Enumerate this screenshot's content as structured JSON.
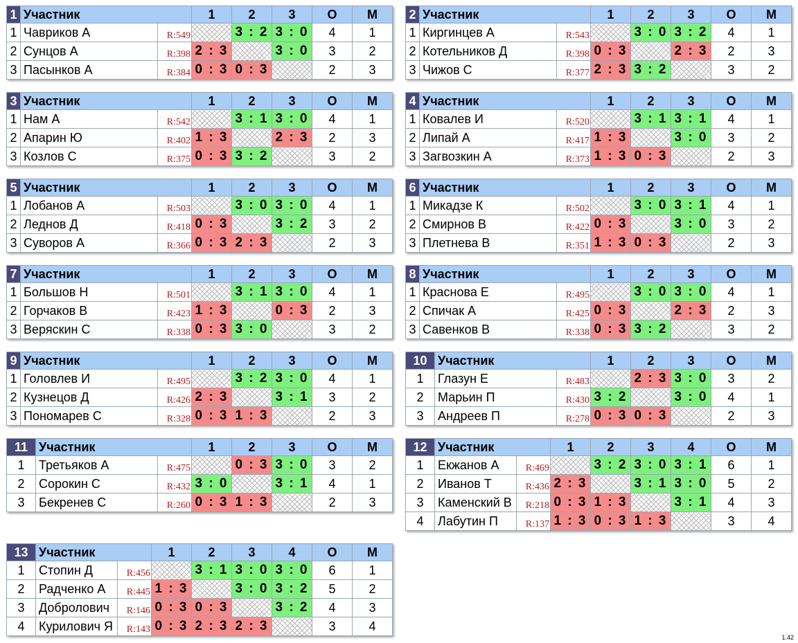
{
  "headers": {
    "title": "Участник",
    "points": "О",
    "place": "М"
  },
  "version": "1.42",
  "groups": [
    {
      "num": "1",
      "cols": [
        "1",
        "2",
        "3"
      ],
      "rows": [
        {
          "i": "1",
          "name": "Чавриков А",
          "rating": "R:549",
          "scores": [
            "",
            "3 : 2",
            "3 : 0"
          ],
          "pts": "4",
          "place": "1"
        },
        {
          "i": "2",
          "name": "Сунцов А",
          "rating": "R:398",
          "scores": [
            "2 : 3",
            "",
            "3 : 0"
          ],
          "pts": "3",
          "place": "2"
        },
        {
          "i": "3",
          "name": "Пасынков А",
          "rating": "R:384",
          "scores": [
            "0 : 3",
            "0 : 3",
            ""
          ],
          "pts": "2",
          "place": "3"
        }
      ]
    },
    {
      "num": "2",
      "cols": [
        "1",
        "2",
        "3"
      ],
      "rows": [
        {
          "i": "1",
          "name": "Киргинцев А",
          "rating": "R:543",
          "scores": [
            "",
            "3 : 0",
            "3 : 2"
          ],
          "pts": "4",
          "place": "1"
        },
        {
          "i": "2",
          "name": "Котельников Д",
          "rating": "R:398",
          "scores": [
            "0 : 3",
            "",
            "2 : 3"
          ],
          "pts": "2",
          "place": "3"
        },
        {
          "i": "3",
          "name": "Чижов С",
          "rating": "R:377",
          "scores": [
            "2 : 3",
            "3 : 2",
            ""
          ],
          "pts": "3",
          "place": "2"
        }
      ]
    },
    {
      "num": "3",
      "cols": [
        "1",
        "2",
        "3"
      ],
      "rows": [
        {
          "i": "1",
          "name": "Нам А",
          "rating": "R:542",
          "scores": [
            "",
            "3 : 1",
            "3 : 0"
          ],
          "pts": "4",
          "place": "1"
        },
        {
          "i": "2",
          "name": "Апарин Ю",
          "rating": "R:402",
          "scores": [
            "1 : 3",
            "",
            "2 : 3"
          ],
          "pts": "2",
          "place": "3"
        },
        {
          "i": "3",
          "name": "Козлов С",
          "rating": "R:375",
          "scores": [
            "0 : 3",
            "3 : 2",
            ""
          ],
          "pts": "3",
          "place": "2"
        }
      ]
    },
    {
      "num": "4",
      "cols": [
        "1",
        "2",
        "3"
      ],
      "rows": [
        {
          "i": "1",
          "name": "Ковалев И",
          "rating": "R:520",
          "scores": [
            "",
            "3 : 1",
            "3 : 1"
          ],
          "pts": "4",
          "place": "1"
        },
        {
          "i": "2",
          "name": "Липай А",
          "rating": "R:417",
          "scores": [
            "1 : 3",
            "",
            "3 : 0"
          ],
          "pts": "3",
          "place": "2"
        },
        {
          "i": "3",
          "name": "Загвозкин А",
          "rating": "R:373",
          "scores": [
            "1 : 3",
            "0 : 3",
            ""
          ],
          "pts": "2",
          "place": "3"
        }
      ]
    },
    {
      "num": "5",
      "cols": [
        "1",
        "2",
        "3"
      ],
      "rows": [
        {
          "i": "1",
          "name": "Лобанов А",
          "rating": "R:503",
          "scores": [
            "",
            "3 : 0",
            "3 : 0"
          ],
          "pts": "4",
          "place": "1"
        },
        {
          "i": "2",
          "name": "Леднов Д",
          "rating": "R:418",
          "scores": [
            "0 : 3",
            "",
            "3 : 2"
          ],
          "pts": "3",
          "place": "2"
        },
        {
          "i": "3",
          "name": "Суворов А",
          "rating": "R:366",
          "scores": [
            "0 : 3",
            "2 : 3",
            ""
          ],
          "pts": "2",
          "place": "3"
        }
      ]
    },
    {
      "num": "6",
      "cols": [
        "1",
        "2",
        "3"
      ],
      "rows": [
        {
          "i": "1",
          "name": "Микадзе К",
          "rating": "R:502",
          "scores": [
            "",
            "3 : 0",
            "3 : 1"
          ],
          "pts": "4",
          "place": "1"
        },
        {
          "i": "2",
          "name": "Смирнов В",
          "rating": "R:422",
          "scores": [
            "0 : 3",
            "",
            "3 : 0"
          ],
          "pts": "3",
          "place": "2"
        },
        {
          "i": "3",
          "name": "Плетнева В",
          "rating": "R:351",
          "scores": [
            "1 : 3",
            "0 : 3",
            ""
          ],
          "pts": "2",
          "place": "3"
        }
      ]
    },
    {
      "num": "7",
      "cols": [
        "1",
        "2",
        "3"
      ],
      "rows": [
        {
          "i": "1",
          "name": "Большов Н",
          "rating": "R:501",
          "scores": [
            "",
            "3 : 1",
            "3 : 0"
          ],
          "pts": "4",
          "place": "1"
        },
        {
          "i": "2",
          "name": "Горчаков В",
          "rating": "R:423",
          "scores": [
            "1 : 3",
            "",
            "0 : 3"
          ],
          "pts": "2",
          "place": "3"
        },
        {
          "i": "3",
          "name": "Веряскин С",
          "rating": "R:338",
          "scores": [
            "0 : 3",
            "3 : 0",
            ""
          ],
          "pts": "3",
          "place": "2"
        }
      ]
    },
    {
      "num": "8",
      "cols": [
        "1",
        "2",
        "3"
      ],
      "rows": [
        {
          "i": "1",
          "name": "Краснова Е",
          "rating": "R:495",
          "scores": [
            "",
            "3 : 0",
            "3 : 0"
          ],
          "pts": "4",
          "place": "1"
        },
        {
          "i": "2",
          "name": "Спичак А",
          "rating": "R:425",
          "scores": [
            "0 : 3",
            "",
            "2 : 3"
          ],
          "pts": "2",
          "place": "3"
        },
        {
          "i": "3",
          "name": "Савенков В",
          "rating": "R:338",
          "scores": [
            "0 : 3",
            "3 : 2",
            ""
          ],
          "pts": "3",
          "place": "2"
        }
      ]
    },
    {
      "num": "9",
      "cols": [
        "1",
        "2",
        "3"
      ],
      "rows": [
        {
          "i": "1",
          "name": "Головлев И",
          "rating": "R:495",
          "scores": [
            "",
            "3 : 2",
            "3 : 0"
          ],
          "pts": "4",
          "place": "1"
        },
        {
          "i": "2",
          "name": "Кузнецов Д",
          "rating": "R:426",
          "scores": [
            "2 : 3",
            "",
            "3 : 1"
          ],
          "pts": "3",
          "place": "2"
        },
        {
          "i": "3",
          "name": "Пономарев С",
          "rating": "R:328",
          "scores": [
            "0 : 3",
            "1 : 3",
            ""
          ],
          "pts": "2",
          "place": "3"
        }
      ]
    },
    {
      "num": "10",
      "cols": [
        "1",
        "2",
        "3"
      ],
      "rows": [
        {
          "i": "1",
          "name": "Глазун Е",
          "rating": "R:483",
          "scores": [
            "",
            "2 : 3",
            "3 : 0"
          ],
          "pts": "3",
          "place": "2"
        },
        {
          "i": "2",
          "name": "Марьин П",
          "rating": "R:430",
          "scores": [
            "3 : 2",
            "",
            "3 : 0"
          ],
          "pts": "4",
          "place": "1"
        },
        {
          "i": "3",
          "name": "Андреев П",
          "rating": "R:278",
          "scores": [
            "0 : 3",
            "0 : 3",
            ""
          ],
          "pts": "2",
          "place": "3"
        }
      ]
    },
    {
      "num": "11",
      "cols": [
        "1",
        "2",
        "3"
      ],
      "rows": [
        {
          "i": "1",
          "name": "Третьяков А",
          "rating": "R:475",
          "scores": [
            "",
            "0 : 3",
            "3 : 0"
          ],
          "pts": "3",
          "place": "2"
        },
        {
          "i": "2",
          "name": "Сорокин С",
          "rating": "R:432",
          "scores": [
            "3 : 0",
            "",
            "3 : 1"
          ],
          "pts": "4",
          "place": "1"
        },
        {
          "i": "3",
          "name": "Бекренев С",
          "rating": "R:260",
          "scores": [
            "0 : 3",
            "1 : 3",
            ""
          ],
          "pts": "2",
          "place": "3"
        }
      ]
    },
    {
      "num": "12",
      "cols": [
        "1",
        "2",
        "3",
        "4"
      ],
      "rows": [
        {
          "i": "1",
          "name": "Екжанов А",
          "rating": "R:469",
          "scores": [
            "",
            "3 : 2",
            "3 : 0",
            "3 : 1"
          ],
          "pts": "6",
          "place": "1"
        },
        {
          "i": "2",
          "name": "Иванов Т",
          "rating": "R:436",
          "scores": [
            "2 : 3",
            "",
            "3 : 1",
            "3 : 0"
          ],
          "pts": "5",
          "place": "2"
        },
        {
          "i": "3",
          "name": "Каменский В",
          "rating": "R:218",
          "scores": [
            "0 : 3",
            "1 : 3",
            "",
            "3 : 1"
          ],
          "pts": "4",
          "place": "3"
        },
        {
          "i": "4",
          "name": "Лабутин П",
          "rating": "R:137",
          "scores": [
            "1 : 3",
            "0 : 3",
            "1 : 3",
            ""
          ],
          "pts": "3",
          "place": "4"
        }
      ]
    },
    {
      "num": "13",
      "cols": [
        "1",
        "2",
        "3",
        "4"
      ],
      "rows": [
        {
          "i": "1",
          "name": "Стопин Д",
          "rating": "R:456",
          "scores": [
            "",
            "3 : 1",
            "3 : 0",
            "3 : 0"
          ],
          "pts": "6",
          "place": "1"
        },
        {
          "i": "2",
          "name": "Радченко А",
          "rating": "R:445",
          "scores": [
            "1 : 3",
            "",
            "3 : 0",
            "3 : 2"
          ],
          "pts": "5",
          "place": "2"
        },
        {
          "i": "3",
          "name": "Добролович",
          "rating": "R:146",
          "scores": [
            "0 : 3",
            "0 : 3",
            "",
            "3 : 2"
          ],
          "pts": "4",
          "place": "3"
        },
        {
          "i": "4",
          "name": "Курилович Я",
          "rating": "R:143",
          "scores": [
            "0 : 3",
            "2 : 3",
            "2 : 3",
            ""
          ],
          "pts": "3",
          "place": "4"
        }
      ]
    }
  ]
}
